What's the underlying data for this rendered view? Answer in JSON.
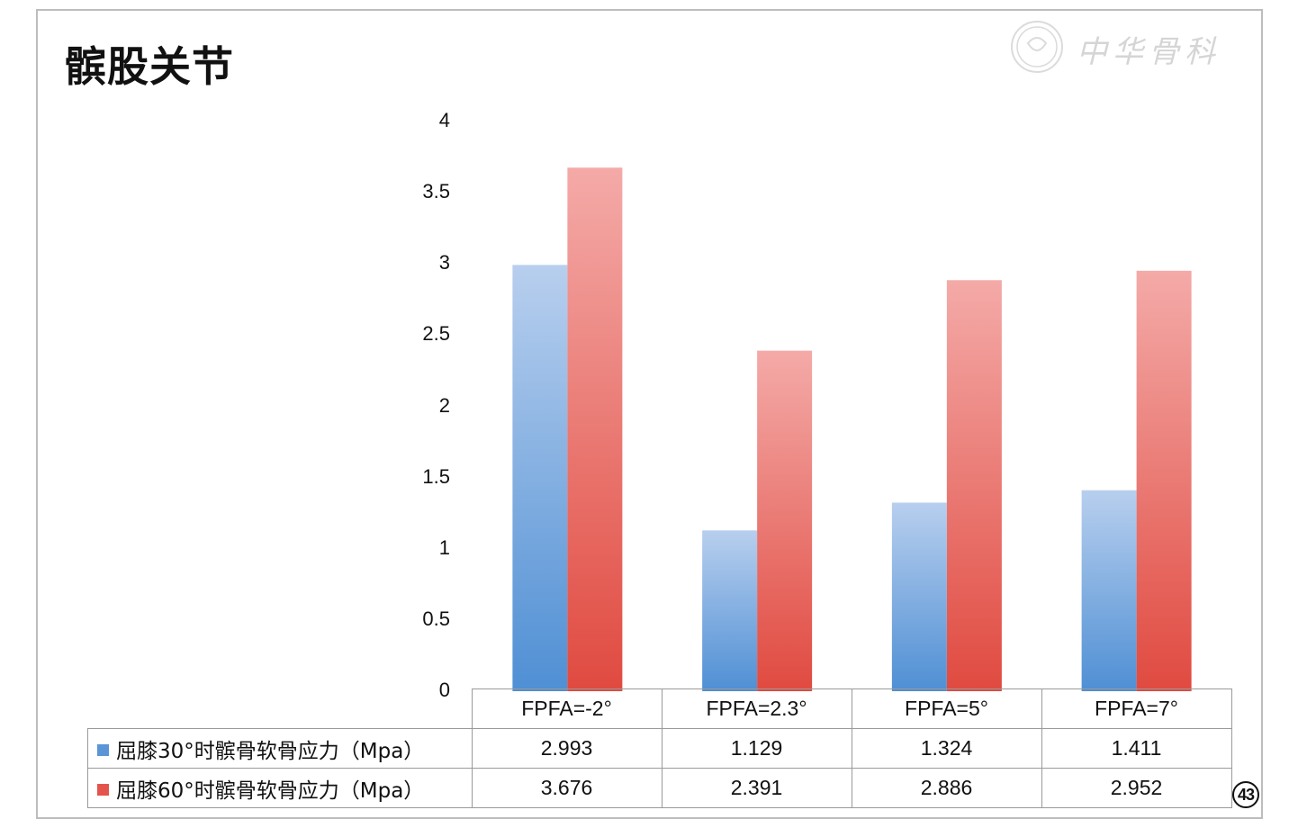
{
  "page_number": "43",
  "watermark": {
    "text": "中华骨科"
  },
  "chart_data": {
    "type": "bar",
    "title": "髌股关节",
    "categories": [
      "FPFA=-2°",
      "FPFA=2.3°",
      "FPFA=5°",
      "FPFA=7°"
    ],
    "series": [
      {
        "name": "屈膝30°时髌骨软骨应力（Mpa）",
        "values": [
          2.993,
          1.129,
          1.324,
          1.411
        ],
        "color": "#6f9fd8"
      },
      {
        "name": "屈膝60°时髌骨软骨应力（Mpa）",
        "values": [
          3.676,
          2.391,
          2.886,
          2.952
        ],
        "color": "#e8615a"
      }
    ],
    "value_labels": [
      [
        "2.993",
        "1.129",
        "1.324",
        "1.411"
      ],
      [
        "3.676",
        "2.391",
        "2.886",
        "2.952"
      ]
    ],
    "yticks": [
      "0",
      "0.5",
      "1",
      "1.5",
      "2",
      "2.5",
      "3",
      "3.5",
      "4"
    ],
    "ylim": [
      0,
      4
    ],
    "grid": false,
    "legend": "data-table"
  }
}
